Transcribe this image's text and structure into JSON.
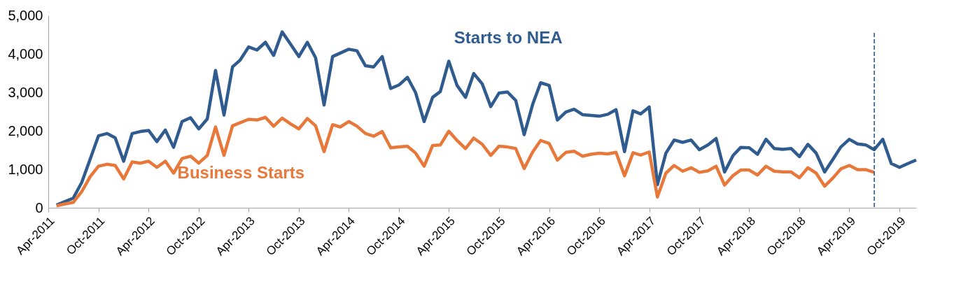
{
  "chart_data": {
    "type": "line",
    "xlim": [
      "2011-04",
      "2019-12"
    ],
    "ylim": [
      0,
      5000
    ],
    "x": [
      "2011-05",
      "2011-06",
      "2011-07",
      "2011-08",
      "2011-09",
      "2011-10",
      "2011-11",
      "2011-12",
      "2012-01",
      "2012-02",
      "2012-03",
      "2012-04",
      "2012-05",
      "2012-06",
      "2012-07",
      "2012-08",
      "2012-09",
      "2012-10",
      "2012-11",
      "2012-12",
      "2013-01",
      "2013-02",
      "2013-03",
      "2013-04",
      "2013-05",
      "2013-06",
      "2013-07",
      "2013-08",
      "2013-09",
      "2013-10",
      "2013-11",
      "2013-12",
      "2014-01",
      "2014-02",
      "2014-03",
      "2014-04",
      "2014-05",
      "2014-06",
      "2014-07",
      "2014-08",
      "2014-09",
      "2014-10",
      "2014-11",
      "2014-12",
      "2015-01",
      "2015-02",
      "2015-03",
      "2015-04",
      "2015-05",
      "2015-06",
      "2015-07",
      "2015-08",
      "2015-09",
      "2015-10",
      "2015-11",
      "2015-12",
      "2016-01",
      "2016-02",
      "2016-03",
      "2016-04",
      "2016-05",
      "2016-06",
      "2016-07",
      "2016-08",
      "2016-09",
      "2016-10",
      "2016-11",
      "2016-12",
      "2017-01",
      "2017-02",
      "2017-03",
      "2017-04",
      "2017-05",
      "2017-06",
      "2017-07",
      "2017-08",
      "2017-09",
      "2017-10",
      "2017-11",
      "2017-12",
      "2018-01",
      "2018-02",
      "2018-03",
      "2018-04",
      "2018-05",
      "2018-06",
      "2018-07",
      "2018-08",
      "2018-09",
      "2018-10",
      "2018-11",
      "2018-12",
      "2019-01",
      "2019-02",
      "2019-03",
      "2019-04",
      "2019-05",
      "2019-06",
      "2019-07",
      "2019-08",
      "2019-09",
      "2019-10",
      "2019-11",
      "2019-12"
    ],
    "xticks": [
      {
        "value": "2011-04",
        "label": "Apr-2011"
      },
      {
        "value": "2011-10",
        "label": "Oct-2011"
      },
      {
        "value": "2012-04",
        "label": "Apr-2012"
      },
      {
        "value": "2012-10",
        "label": "Oct-2012"
      },
      {
        "value": "2013-04",
        "label": "Apr-2013"
      },
      {
        "value": "2013-10",
        "label": "Oct-2013"
      },
      {
        "value": "2014-04",
        "label": "Apr-2014"
      },
      {
        "value": "2014-10",
        "label": "Oct-2014"
      },
      {
        "value": "2015-04",
        "label": "Apr-2015"
      },
      {
        "value": "2015-10",
        "label": "Oct-2015"
      },
      {
        "value": "2016-04",
        "label": "Apr-2016"
      },
      {
        "value": "2016-10",
        "label": "Oct-2016"
      },
      {
        "value": "2017-04",
        "label": "Apr-2017"
      },
      {
        "value": "2017-10",
        "label": "Oct-2017"
      },
      {
        "value": "2018-04",
        "label": "Apr-2018"
      },
      {
        "value": "2018-10",
        "label": "Oct-2018"
      },
      {
        "value": "2019-04",
        "label": "Apr-2019"
      },
      {
        "value": "2019-10",
        "label": "Oct-2019"
      }
    ],
    "yticks": [
      {
        "value": 0,
        "label": "0"
      },
      {
        "value": 1000,
        "label": "1,000"
      },
      {
        "value": 2000,
        "label": "2,000"
      },
      {
        "value": 3000,
        "label": "3,000"
      },
      {
        "value": 4000,
        "label": "4,000"
      },
      {
        "value": 5000,
        "label": "5,000"
      }
    ],
    "grid": false,
    "marker": "none",
    "line_style": "solid",
    "ref_lines": [
      {
        "axis": "x",
        "value": "2019-07",
        "color": "#1f4e79",
        "line_style": "dashed"
      }
    ],
    "series": [
      {
        "name": "Starts to NEA",
        "color": "#2f5b8f",
        "values": [
          70,
          160,
          250,
          660,
          1270,
          1870,
          1930,
          1820,
          1210,
          1930,
          1980,
          2010,
          1720,
          2020,
          1570,
          2240,
          2340,
          2050,
          2310,
          3570,
          2410,
          3660,
          3840,
          4180,
          4100,
          4300,
          3960,
          4570,
          4250,
          3930,
          4300,
          3900,
          2670,
          3930,
          4020,
          4120,
          4080,
          3690,
          3660,
          3930,
          3100,
          3190,
          3390,
          2990,
          2240,
          2870,
          3020,
          3810,
          3180,
          2870,
          3490,
          3220,
          2630,
          2980,
          3010,
          2790,
          1900,
          2690,
          3250,
          3180,
          2280,
          2490,
          2560,
          2420,
          2400,
          2380,
          2430,
          2550,
          1460,
          2520,
          2440,
          2620,
          600,
          1420,
          1760,
          1700,
          1760,
          1510,
          1630,
          1800,
          930,
          1360,
          1570,
          1560,
          1390,
          1780,
          1540,
          1520,
          1540,
          1330,
          1650,
          1420,
          930,
          1270,
          1580,
          1780,
          1660,
          1630,
          1510,
          1780,
          1150,
          1050,
          1150,
          1240
        ]
      },
      {
        "name": "Business Starts",
        "color": "#e8783a",
        "values": [
          50,
          100,
          140,
          420,
          810,
          1080,
          1130,
          1100,
          750,
          1190,
          1160,
          1210,
          1050,
          1210,
          900,
          1280,
          1340,
          1160,
          1360,
          2100,
          1360,
          2130,
          2210,
          2300,
          2280,
          2350,
          2120,
          2330,
          2180,
          2050,
          2320,
          2130,
          1460,
          2160,
          2100,
          2240,
          2120,
          1930,
          1860,
          1980,
          1560,
          1580,
          1600,
          1420,
          1080,
          1620,
          1630,
          1990,
          1750,
          1540,
          1810,
          1650,
          1360,
          1600,
          1580,
          1540,
          1020,
          1450,
          1750,
          1670,
          1240,
          1440,
          1470,
          1340,
          1390,
          1420,
          1400,
          1440,
          830,
          1430,
          1370,
          1450,
          280,
          900,
          1100,
          950,
          1040,
          920,
          960,
          1080,
          590,
          840,
          980,
          980,
          850,
          1080,
          950,
          930,
          930,
          780,
          1040,
          900,
          560,
          780,
          1010,
          1100,
          990,
          990,
          920,
          null,
          null,
          null,
          null,
          null
        ]
      }
    ]
  }
}
